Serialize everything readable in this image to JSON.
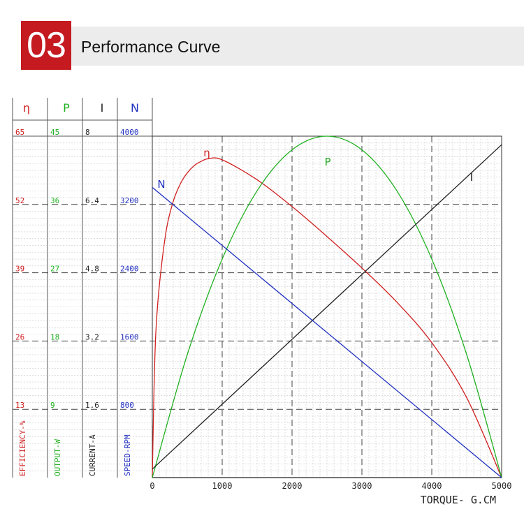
{
  "header": {
    "number": "03",
    "title": "Performance Curve"
  },
  "chart_data": {
    "type": "line",
    "title": "Performance Curve",
    "xlabel": "TORQUE- G.CM",
    "x_ticks": [
      0,
      1000,
      2000,
      3000,
      4000,
      5000
    ],
    "xlim": [
      0,
      5000
    ],
    "grid": true,
    "axes": [
      {
        "symbol": "η",
        "label": "EFFICIENCY-%",
        "ticks": [
          13,
          26,
          39,
          52,
          65
        ],
        "range": [
          0,
          65
        ],
        "color": "#d02020"
      },
      {
        "symbol": "P",
        "label": "OUTPUT-W",
        "ticks": [
          9,
          18,
          27,
          36,
          45
        ],
        "range": [
          0,
          45
        ],
        "color": "#20b020"
      },
      {
        "symbol": "I",
        "label": "CURRENT-A",
        "ticks": [
          1.6,
          3.2,
          4.8,
          6.4,
          8
        ],
        "range": [
          0,
          8
        ],
        "color": "#222222"
      },
      {
        "symbol": "N",
        "label": "SPEED-RPM",
        "ticks": [
          800,
          1600,
          2400,
          3200,
          4000
        ],
        "range": [
          0,
          4000
        ],
        "color": "#2030c0"
      }
    ],
    "series": [
      {
        "name": "η",
        "axis": 0,
        "color": "#d02020",
        "x": [
          0,
          25,
          50,
          100,
          200,
          300,
          400,
          500,
          600,
          700,
          800,
          1000,
          1500,
          2000,
          2500,
          3000,
          3500,
          4000,
          4500,
          5000
        ],
        "y": [
          0,
          17.2,
          27.5,
          36.5,
          47.1,
          52.6,
          55.9,
          58.0,
          59.4,
          60.2,
          60.7,
          60.5,
          56.7,
          51.6,
          45.9,
          39.9,
          33.4,
          25.7,
          15.2,
          0
        ]
      },
      {
        "name": "P",
        "axis": 1,
        "color": "#20b020",
        "x": [
          0,
          500,
          1000,
          1500,
          2000,
          2500,
          3000,
          3500,
          4000,
          4500,
          5000
        ],
        "y": [
          0,
          16.2,
          28.8,
          37.8,
          43.2,
          45.0,
          43.2,
          37.8,
          28.8,
          16.2,
          0
        ]
      },
      {
        "name": "I",
        "axis": 2,
        "color": "#222222",
        "x": [
          0,
          5000
        ],
        "y": [
          0.2,
          7.8
        ]
      },
      {
        "name": "N",
        "axis": 3,
        "color": "#2030c0",
        "x": [
          0,
          5000
        ],
        "y": [
          3400,
          0
        ]
      }
    ]
  }
}
